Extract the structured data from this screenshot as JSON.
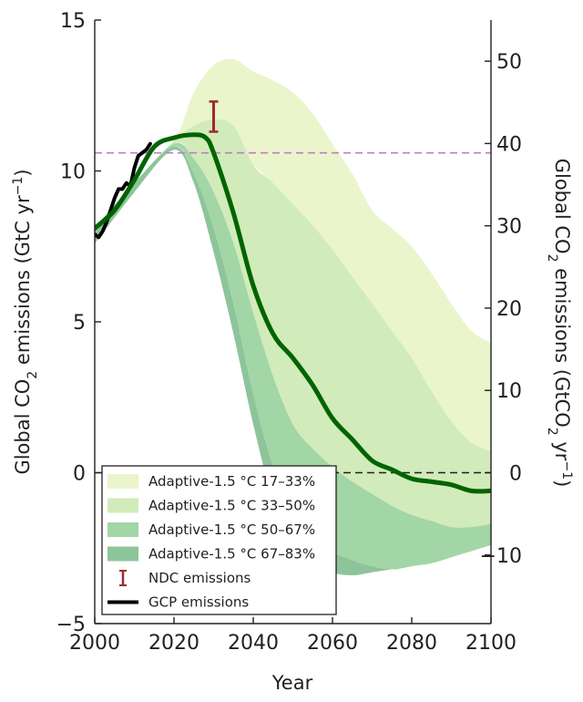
{
  "chart_data": {
    "type": "area",
    "xlabel": "Year",
    "ylabel_left": {
      "prefix": "Global CO",
      "sub": "2",
      "mid": " emissions (GtC yr",
      "sup": "−1",
      "suffix": ")"
    },
    "ylabel_right": {
      "prefix": "Global CO",
      "sub": "2",
      "mid": " emissions (GtCO",
      "sub2": "2",
      "mid2": " yr",
      "sup": "−1",
      "suffix": ")"
    },
    "xlim": [
      2000,
      2100
    ],
    "ylim_left": [
      -5,
      15
    ],
    "ylim_right_gtco2": [
      -18.33,
      55
    ],
    "x_ticks": [
      2000,
      2020,
      2040,
      2060,
      2080,
      2100
    ],
    "x_tick_labels": [
      "2000",
      "2020",
      "2040",
      "2060",
      "2080",
      "2100"
    ],
    "y_left_ticks": [
      -5,
      0,
      5,
      10,
      15
    ],
    "y_left_tick_labels": [
      "−5",
      "0",
      "5",
      "10",
      "15"
    ],
    "y_right_ticks": [
      -10,
      0,
      10,
      20,
      30,
      40,
      50
    ],
    "y_right_tick_labels": [
      "−10",
      "0",
      "10",
      "20",
      "30",
      "40",
      "50"
    ],
    "reference_lines": [
      {
        "y": 10.6,
        "style": "dashed",
        "color": "#c37ac9"
      },
      {
        "y": 0,
        "style": "dashed",
        "color": "#231f20"
      }
    ],
    "bands": [
      {
        "name": "Adaptive-1.5 °C 17–33%",
        "color": "#eaf5cc",
        "x": [
          2000,
          2010,
          2020,
          2025,
          2030,
          2035,
          2040,
          2045,
          2050,
          2055,
          2060,
          2065,
          2070,
          2075,
          2080,
          2085,
          2090,
          2095,
          2100
        ],
        "upper": [
          8.1,
          9.6,
          11.0,
          12.6,
          13.5,
          13.7,
          13.3,
          13.0,
          12.6,
          11.9,
          10.9,
          9.9,
          8.7,
          8.1,
          7.5,
          6.6,
          5.6,
          4.7,
          4.3
        ],
        "lower": [
          7.6,
          9.3,
          11.0,
          11.1,
          11.1,
          10.9,
          10.2,
          9.6,
          8.9,
          8.2,
          7.4,
          6.5,
          5.6,
          4.7,
          3.8,
          2.7,
          1.7,
          1.0,
          0.7
        ]
      },
      {
        "name": "Adaptive-1.5 °C 33–50%",
        "color": "#d2ebba",
        "x": [
          2000,
          2010,
          2020,
          2025,
          2030,
          2035,
          2040,
          2045,
          2050,
          2055,
          2060,
          2065,
          2070,
          2075,
          2080,
          2085,
          2090,
          2095,
          2100
        ],
        "upper": [
          8.1,
          9.6,
          11.0,
          11.5,
          11.7,
          11.5,
          10.2,
          9.6,
          8.9,
          8.2,
          7.4,
          6.5,
          5.6,
          4.7,
          3.8,
          2.7,
          1.7,
          1.0,
          0.7
        ],
        "lower": [
          7.6,
          9.3,
          10.9,
          10.4,
          9.3,
          7.6,
          5.3,
          3.2,
          1.6,
          0.8,
          0.2,
          -0.3,
          -0.7,
          -1.1,
          -1.4,
          -1.6,
          -1.8,
          -1.8,
          -1.7
        ]
      },
      {
        "name": "Adaptive-1.5 °C 50–67%",
        "color": "#a2d6a6",
        "x": [
          2000,
          2010,
          2020,
          2025,
          2030,
          2035,
          2040,
          2045,
          2050,
          2055,
          2060,
          2065,
          2070,
          2075,
          2080,
          2085,
          2090,
          2095,
          2100
        ],
        "upper": [
          8.1,
          9.6,
          10.9,
          10.4,
          9.3,
          7.6,
          5.3,
          3.2,
          1.6,
          0.8,
          0.2,
          -0.3,
          -0.7,
          -1.1,
          -1.4,
          -1.6,
          -1.8,
          -1.8,
          -1.7
        ],
        "lower": [
          7.6,
          9.3,
          10.8,
          9.9,
          8.1,
          5.6,
          2.6,
          0.2,
          -1.3,
          -2.0,
          -2.6,
          -2.9,
          -3.1,
          -3.2,
          -3.1,
          -3.0,
          -2.8,
          -2.6,
          -2.4
        ]
      },
      {
        "name": "Adaptive-1.5 °C 67–83%",
        "color": "#8ec49a",
        "x": [
          2000,
          2010,
          2020,
          2025,
          2030,
          2035,
          2040,
          2045,
          2050,
          2055,
          2060,
          2065,
          2070,
          2075,
          2080,
          2085,
          2090,
          2095,
          2100
        ],
        "upper": [
          8.1,
          9.6,
          10.8,
          9.9,
          8.1,
          5.6,
          2.6,
          0.2,
          -1.3,
          -2.0,
          -2.6,
          -2.9,
          -3.1,
          -3.2,
          -3.1,
          -3.0,
          -2.8,
          -2.6,
          -2.4
        ],
        "lower": [
          7.6,
          9.3,
          10.7,
          9.6,
          7.3,
          4.6,
          1.6,
          -0.9,
          -2.2,
          -2.9,
          -3.3,
          -3.4,
          -3.3,
          -3.2,
          -3.1,
          -3.0,
          -2.8,
          -2.6,
          -2.4
        ]
      }
    ],
    "series": [
      {
        "name": "GCP emissions",
        "color": "#000000",
        "x": [
          2000,
          2001,
          2002,
          2003,
          2004,
          2005,
          2006,
          2007,
          2008,
          2009,
          2010,
          2011,
          2012,
          2013,
          2014
        ],
        "values": [
          7.9,
          7.8,
          8.0,
          8.3,
          8.7,
          9.1,
          9.4,
          9.4,
          9.6,
          9.5,
          10.1,
          10.5,
          10.6,
          10.7,
          10.9
        ]
      },
      {
        "name": "",
        "color": "#006400",
        "x": [
          2000,
          2005,
          2010,
          2015,
          2020,
          2025,
          2028,
          2030,
          2035,
          2040,
          2045,
          2050,
          2055,
          2060,
          2065,
          2070,
          2075,
          2080,
          2085,
          2090,
          2095,
          2100
        ],
        "values": [
          8.1,
          8.7,
          9.7,
          10.8,
          11.1,
          11.2,
          11.1,
          10.6,
          8.6,
          6.2,
          4.6,
          3.8,
          2.9,
          1.8,
          1.1,
          0.4,
          0.1,
          -0.2,
          -0.3,
          -0.4,
          -0.6,
          -0.6
        ]
      }
    ],
    "ndc": {
      "name": "NDC emissions",
      "x": 2030,
      "low": 11.3,
      "high": 12.3,
      "color": "#9e2a2b"
    },
    "legend": {
      "placement": "bottom-left",
      "entries": [
        "Adaptive-1.5 °C 17–33%",
        "Adaptive-1.5 °C 33–50%",
        "Adaptive-1.5 °C 50–67%",
        "Adaptive-1.5 °C 67–83%",
        "NDC emissions",
        "GCP emissions"
      ]
    },
    "grid": false
  }
}
